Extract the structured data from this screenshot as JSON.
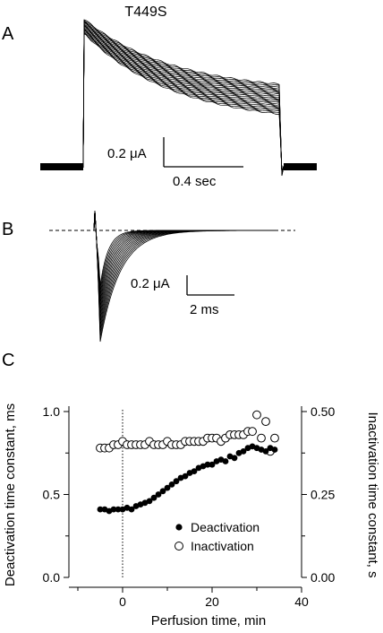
{
  "figure": {
    "title": "T449S",
    "panels": [
      {
        "label": "A",
        "scale_current": "0.2 μA",
        "scale_time": "0.4 sec"
      },
      {
        "label": "B",
        "scale_current": "0.2 μA",
        "scale_time": "2 ms"
      },
      {
        "label": "C"
      }
    ]
  },
  "chart_data": {
    "type": "scatter",
    "xlabel": "Perfusion time, min",
    "ylabel_left": "Deactivation time constant, ms",
    "ylabel_right": "Inactivation time constant, s",
    "xlim": [
      -12,
      40
    ],
    "xticks": [
      0,
      20,
      40
    ],
    "ylim_left": [
      0.0,
      1.0
    ],
    "yticks_left": [
      "0.0",
      "0.5",
      "1.0"
    ],
    "ylim_right": [
      0.0,
      0.5
    ],
    "yticks_right": [
      "0.00",
      "0.25",
      "0.50"
    ],
    "vline_x": 0,
    "legend_position": "bottom-right",
    "series": [
      {
        "name": "Deactivation",
        "marker": "filled-circle",
        "axis": "left",
        "x": [
          -5,
          -4,
          -3,
          -2,
          -1,
          0,
          1,
          2,
          3,
          4,
          5,
          6,
          7,
          8,
          9,
          10,
          11,
          12,
          13,
          14,
          15,
          16,
          17,
          18,
          19,
          20,
          21,
          22,
          23,
          24,
          25,
          26,
          27,
          28,
          29,
          30,
          31,
          32,
          33,
          34
        ],
        "y": [
          0.41,
          0.41,
          0.4,
          0.41,
          0.41,
          0.41,
          0.42,
          0.41,
          0.43,
          0.44,
          0.45,
          0.46,
          0.48,
          0.5,
          0.52,
          0.54,
          0.56,
          0.58,
          0.6,
          0.61,
          0.63,
          0.64,
          0.66,
          0.67,
          0.68,
          0.68,
          0.7,
          0.71,
          0.7,
          0.73,
          0.72,
          0.75,
          0.76,
          0.78,
          0.79,
          0.78,
          0.77,
          0.76,
          0.78,
          0.77
        ]
      },
      {
        "name": "Inactivation",
        "marker": "open-circle",
        "axis": "right",
        "x": [
          -5,
          -4,
          -3,
          -2,
          -1,
          0,
          1,
          2,
          3,
          4,
          5,
          6,
          7,
          8,
          9,
          10,
          11,
          12,
          13,
          14,
          15,
          16,
          17,
          18,
          19,
          20,
          21,
          22,
          23,
          24,
          25,
          26,
          27,
          28,
          29,
          30,
          31,
          32,
          33,
          34
        ],
        "y": [
          0.39,
          0.39,
          0.39,
          0.4,
          0.4,
          0.41,
          0.4,
          0.4,
          0.4,
          0.4,
          0.4,
          0.41,
          0.4,
          0.4,
          0.4,
          0.41,
          0.4,
          0.4,
          0.4,
          0.41,
          0.41,
          0.41,
          0.41,
          0.41,
          0.42,
          0.42,
          0.42,
          0.41,
          0.42,
          0.43,
          0.43,
          0.43,
          0.43,
          0.44,
          0.44,
          0.49,
          0.42,
          0.47,
          0.38,
          0.42
        ]
      }
    ]
  }
}
